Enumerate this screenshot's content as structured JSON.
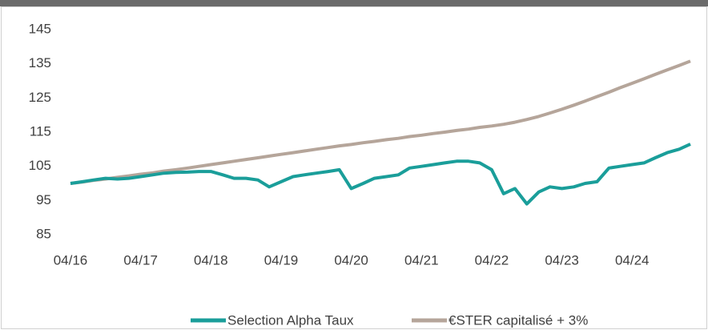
{
  "chart_data": {
    "type": "line",
    "x": [
      2016.25,
      2016.42,
      2016.58,
      2016.75,
      2016.92,
      2017.08,
      2017.25,
      2017.42,
      2017.58,
      2017.75,
      2017.92,
      2018.08,
      2018.25,
      2018.42,
      2018.58,
      2018.75,
      2018.92,
      2019.08,
      2019.25,
      2019.42,
      2019.58,
      2019.75,
      2019.92,
      2020.08,
      2020.25,
      2020.42,
      2020.58,
      2020.75,
      2020.92,
      2021.08,
      2021.25,
      2021.42,
      2021.58,
      2021.75,
      2021.92,
      2022.08,
      2022.25,
      2022.42,
      2022.58,
      2022.75,
      2022.92,
      2023.08,
      2023.25,
      2023.42,
      2023.58,
      2023.75,
      2023.92,
      2024.08,
      2024.25,
      2024.42,
      2024.58,
      2024.75,
      2024.92,
      2025.08
    ],
    "series": [
      {
        "name": "Selection Alpha Taux",
        "color": "#1a9e9a",
        "values": [
          100,
          100.5,
          101,
          101.5,
          101.3,
          101.5,
          102,
          102.5,
          103,
          103.2,
          103.3,
          103.5,
          103.5,
          102.5,
          101.5,
          101.5,
          101,
          99,
          100.5,
          102,
          102.5,
          103,
          103.5,
          104,
          98.5,
          100,
          101.5,
          102,
          102.5,
          104.5,
          105,
          105.5,
          106,
          106.5,
          106.5,
          106,
          104,
          97,
          98.5,
          94,
          97.5,
          99,
          98.5,
          99,
          100,
          100.5,
          104.5,
          105,
          105.5,
          106,
          107.5,
          109,
          110,
          111.5
        ]
      },
      {
        "name": "€STER capitalisé + 3%",
        "color": "#b5a59a",
        "values": [
          100,
          100.4,
          100.9,
          101.3,
          101.8,
          102.2,
          102.7,
          103.1,
          103.6,
          104.0,
          104.5,
          105.0,
          105.5,
          106.0,
          106.5,
          107.0,
          107.5,
          108.0,
          108.5,
          109.0,
          109.5,
          110.0,
          110.5,
          111.0,
          111.4,
          111.9,
          112.3,
          112.8,
          113.2,
          113.7,
          114.1,
          114.6,
          115.0,
          115.5,
          115.9,
          116.4,
          116.8,
          117.3,
          117.9,
          118.7,
          119.6,
          120.6,
          121.7,
          122.9,
          124.1,
          125.4,
          126.7,
          128.0,
          129.3,
          130.6,
          131.9,
          133.2,
          134.5,
          135.8
        ]
      }
    ],
    "xlim": [
      2016.25,
      2025.08
    ],
    "xticks": [
      {
        "value": 2016.25,
        "label": "04/16"
      },
      {
        "value": 2017.25,
        "label": "04/17"
      },
      {
        "value": 2018.25,
        "label": "04/18"
      },
      {
        "value": 2019.25,
        "label": "04/19"
      },
      {
        "value": 2020.25,
        "label": "04/20"
      },
      {
        "value": 2021.25,
        "label": "04/21"
      },
      {
        "value": 2022.25,
        "label": "04/22"
      },
      {
        "value": 2023.25,
        "label": "04/23"
      },
      {
        "value": 2024.25,
        "label": "04/24"
      }
    ],
    "ylim": [
      85,
      145
    ],
    "yticks": [
      85,
      95,
      105,
      115,
      125,
      135,
      145
    ],
    "grid": false,
    "legend": "bottom"
  }
}
